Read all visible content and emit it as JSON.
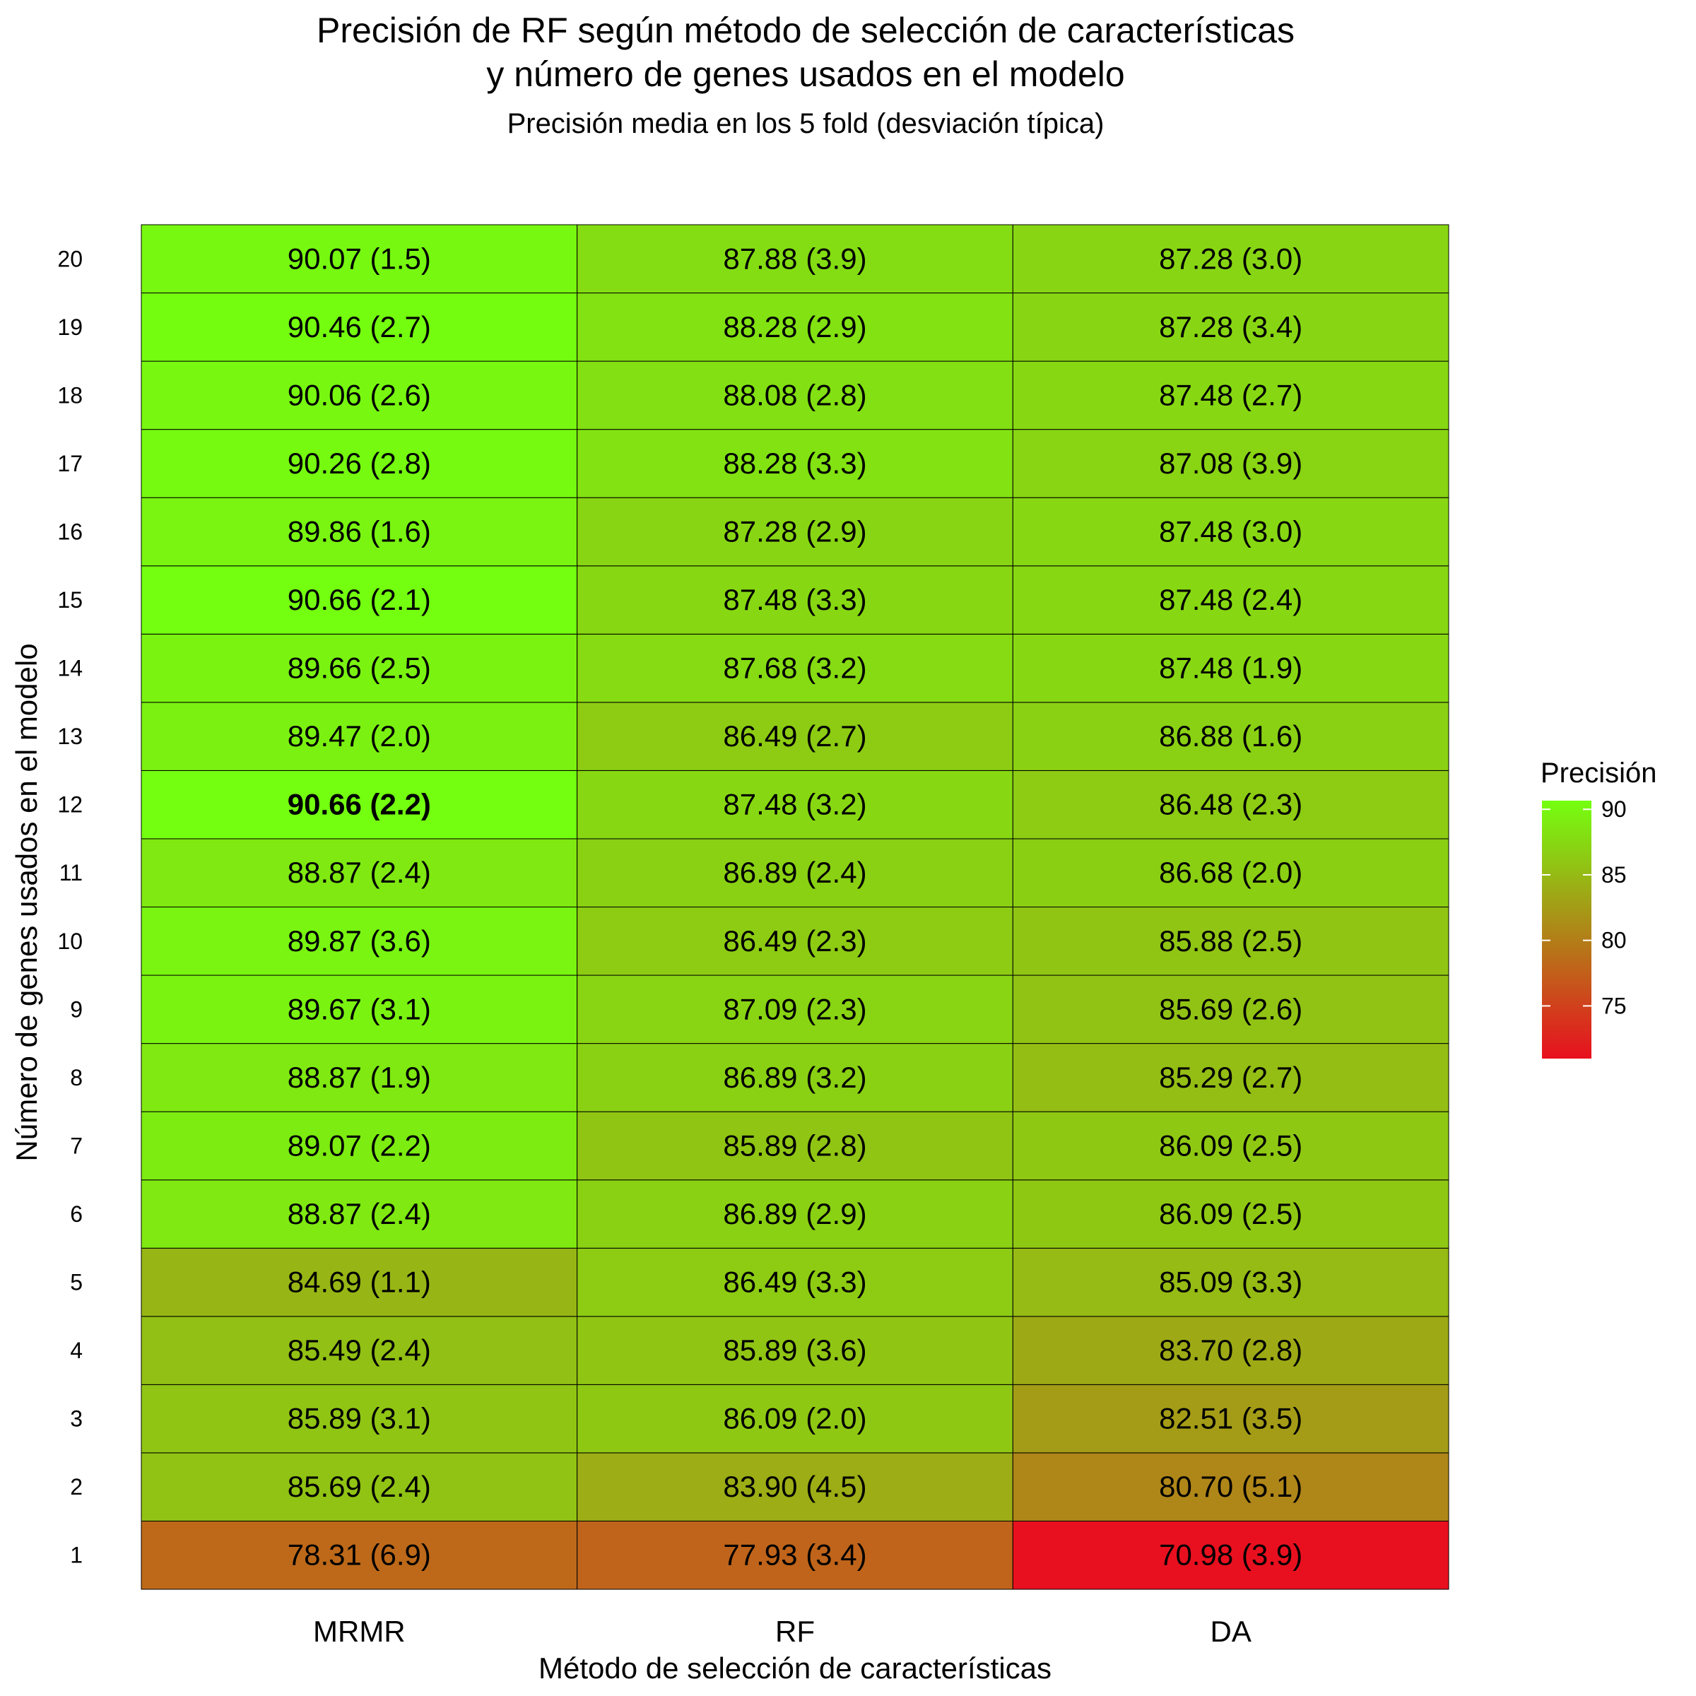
{
  "chart_data": {
    "type": "heatmap",
    "title_line1": "Precisión de RF según método de selección de características",
    "title_line2": "y número de genes usados en el modelo",
    "subtitle": "Precisión media en los 5 fold (desviación típica)",
    "xlabel": "Método de selección de características",
    "ylabel": "Número de genes usados en el modelo",
    "x_categories": [
      "MRMR",
      "RF",
      "DA"
    ],
    "y_categories": [
      "1",
      "2",
      "3",
      "4",
      "5",
      "6",
      "7",
      "8",
      "9",
      "10",
      "11",
      "12",
      "13",
      "14",
      "15",
      "16",
      "17",
      "18",
      "19",
      "20"
    ],
    "values": [
      [
        78.31,
        77.93,
        70.98
      ],
      [
        85.69,
        83.9,
        80.7
      ],
      [
        85.89,
        86.09,
        82.51
      ],
      [
        85.49,
        85.89,
        83.7
      ],
      [
        84.69,
        86.49,
        85.09
      ],
      [
        88.87,
        86.89,
        86.09
      ],
      [
        89.07,
        85.89,
        86.09
      ],
      [
        88.87,
        86.89,
        85.29
      ],
      [
        89.67,
        87.09,
        85.69
      ],
      [
        89.87,
        86.49,
        85.88
      ],
      [
        88.87,
        86.89,
        86.68
      ],
      [
        90.66,
        87.48,
        86.48
      ],
      [
        89.47,
        86.49,
        86.88
      ],
      [
        89.66,
        87.68,
        87.48
      ],
      [
        90.66,
        87.48,
        87.48
      ],
      [
        89.86,
        87.28,
        87.48
      ],
      [
        90.26,
        88.28,
        87.08
      ],
      [
        90.06,
        88.08,
        87.48
      ],
      [
        90.46,
        88.28,
        87.28
      ],
      [
        90.07,
        87.88,
        87.28
      ]
    ],
    "sd": [
      [
        6.9,
        3.4,
        3.9
      ],
      [
        2.4,
        4.5,
        5.1
      ],
      [
        3.1,
        2.0,
        3.5
      ],
      [
        2.4,
        3.6,
        2.8
      ],
      [
        1.1,
        3.3,
        3.3
      ],
      [
        2.4,
        2.9,
        2.5
      ],
      [
        2.2,
        2.8,
        2.5
      ],
      [
        1.9,
        3.2,
        2.7
      ],
      [
        3.1,
        2.3,
        2.6
      ],
      [
        3.6,
        2.3,
        2.5
      ],
      [
        2.4,
        2.4,
        2.0
      ],
      [
        2.2,
        3.2,
        2.3
      ],
      [
        2.0,
        2.7,
        1.6
      ],
      [
        2.5,
        3.2,
        1.9
      ],
      [
        2.1,
        3.3,
        2.4
      ],
      [
        1.6,
        2.9,
        3.0
      ],
      [
        2.8,
        3.3,
        3.9
      ],
      [
        2.6,
        2.8,
        2.7
      ],
      [
        2.7,
        2.9,
        3.4
      ],
      [
        1.5,
        3.9,
        3.0
      ]
    ],
    "highlight_cell": {
      "x": "MRMR",
      "y": "12"
    },
    "legend": {
      "title": "Precisión",
      "ticks": [
        75,
        80,
        85,
        90
      ],
      "range": [
        70.98,
        90.66
      ],
      "low_color": "#E8101F",
      "high_color": "#74FF10",
      "placement": "right"
    },
    "grid": false
  }
}
